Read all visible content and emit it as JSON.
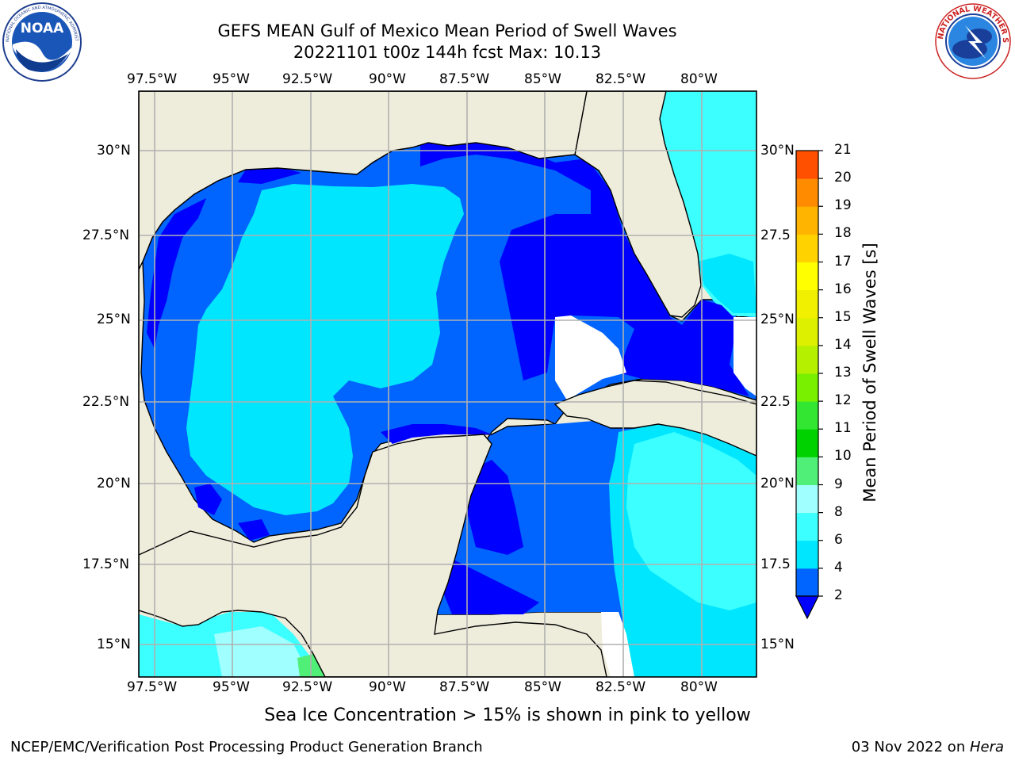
{
  "title": {
    "line1": "GEFS MEAN Gulf of Mexico Mean Period of Swell Waves",
    "line2": "20221101 t00z 144h fcst   Max: 10.13"
  },
  "logos": {
    "left": {
      "name": "noaa-logo",
      "text": "NOAA",
      "ring_text": "NATIONAL OCEANIC AND ATMOSPHERIC ADMINISTRATION · U.S. DEPARTMENT OF COMMERCE"
    },
    "right": {
      "name": "nws-logo",
      "ring_text": "NATIONAL WEATHER SERVICE"
    }
  },
  "map": {
    "lon_labels": [
      "97.5°W",
      "95°W",
      "92.5°W",
      "90°W",
      "87.5°W",
      "85°W",
      "82.5°W",
      "80°W"
    ],
    "lat_labels_left": [
      "30°N",
      "27.5°N",
      "25°N",
      "22.5°N",
      "20°N",
      "17.5°N",
      "15°N"
    ],
    "lat_labels_right": [
      "30°N",
      "27.5",
      "25°N",
      "22.5",
      "20°N",
      "17.5",
      "15°N"
    ],
    "colors": {
      "land": "#eeeddc",
      "grid": "#b0b0b0",
      "coast": "#000000",
      "no_data": "#ffffff"
    }
  },
  "colorbar": {
    "label": "Mean Period of Swell Waves [s]",
    "ticks": [
      "2",
      "4",
      "6",
      "8",
      "9",
      "10",
      "11",
      "12",
      "13",
      "14",
      "15",
      "16",
      "17",
      "18",
      "19",
      "20",
      "21"
    ],
    "colors": [
      "#0064ff",
      "#00e6ff",
      "#3cffff",
      "#a0ffff",
      "#50f078",
      "#00d200",
      "#32e632",
      "#78f000",
      "#b4f000",
      "#dcf000",
      "#f0f000",
      "#ffff00",
      "#ffd200",
      "#ffb400",
      "#ff8c00",
      "#ff5000",
      "#ff1400",
      "#ff0000"
    ],
    "under_color": "#0000ff"
  },
  "footer": {
    "sea_ice_note": "Sea Ice Concentration > 15% is shown in pink to yellow",
    "left": "NCEP/EMC/Verification Post Processing Product Generation Branch",
    "right_date": "03 Nov 2022 on ",
    "right_host": "Hera"
  }
}
